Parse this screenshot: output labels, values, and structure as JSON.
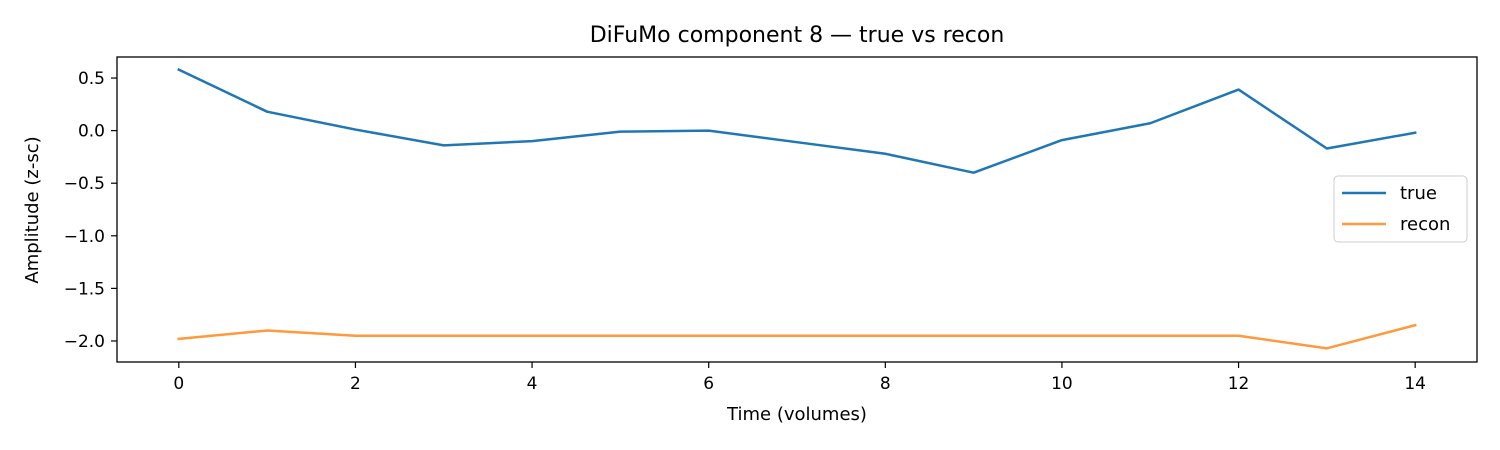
{
  "chart_data": {
    "type": "line",
    "title": "DiFuMo component 8 — true vs recon",
    "xlabel": "Time (volumes)",
    "ylabel": "Amplitude (z-sc)",
    "x": [
      0,
      1,
      2,
      3,
      4,
      5,
      6,
      7,
      8,
      9,
      10,
      11,
      12,
      13,
      14
    ],
    "xlim": [
      -0.7,
      14.7
    ],
    "ylim": [
      -2.2,
      0.7
    ],
    "xticks": [
      0,
      2,
      4,
      6,
      8,
      10,
      12,
      14
    ],
    "yticks": [
      0.5,
      0.0,
      -0.5,
      -1.0,
      -1.5,
      -2.0
    ],
    "ytick_labels": [
      "0.5",
      "0.0",
      "−0.5",
      "−1.0",
      "−1.5",
      "−2.0"
    ],
    "grid": false,
    "legend_position": "center-right",
    "series": [
      {
        "name": "true",
        "color": "#1f77b4",
        "values": [
          0.58,
          0.18,
          0.01,
          -0.14,
          -0.1,
          -0.01,
          0.0,
          -0.11,
          -0.22,
          -0.4,
          -0.09,
          0.07,
          0.39,
          -0.17,
          -0.02
        ]
      },
      {
        "name": "recon",
        "color": "#ff9a3c",
        "values": [
          -1.98,
          -1.9,
          -1.95,
          -1.95,
          -1.95,
          -1.95,
          -1.95,
          -1.95,
          -1.95,
          -1.95,
          -1.95,
          -1.95,
          -1.95,
          -2.07,
          -1.85
        ]
      }
    ]
  }
}
